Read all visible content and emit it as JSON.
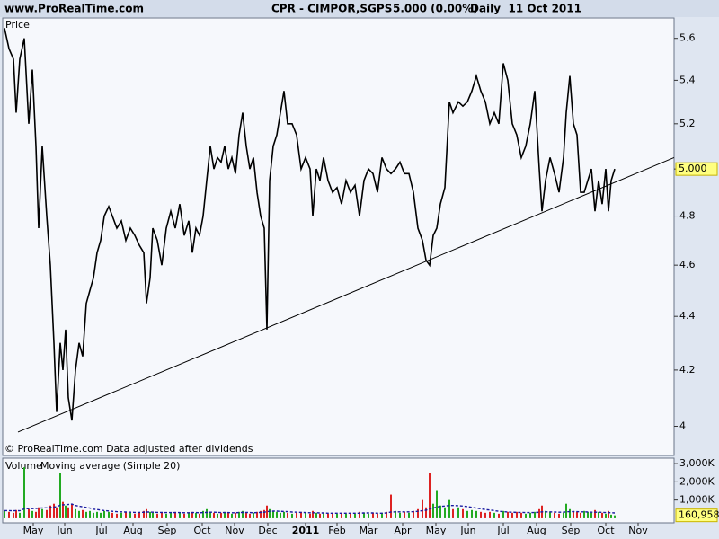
{
  "header": {
    "site": "www.ProRealTime.com",
    "title": "CPR - CIMPOR,SGPS",
    "quote": "5.000 (0.00%)",
    "period": "Daily  11 Oct 2011"
  },
  "chart_data": [
    {
      "type": "line",
      "log_scale": true,
      "footnote": "© ProRealTime.com  Data adjusted after dividends",
      "x": [
        5,
        10,
        15,
        18,
        22,
        27,
        32,
        36,
        40,
        43,
        47,
        52,
        56,
        60,
        63,
        67,
        70,
        73,
        76,
        80,
        84,
        88,
        92,
        96,
        100,
        104,
        108,
        112,
        116,
        121,
        125,
        130,
        135,
        140,
        145,
        150,
        155,
        160,
        163,
        167,
        170,
        175,
        180,
        185,
        190,
        195,
        200,
        205,
        210,
        214,
        218,
        222,
        226,
        230,
        234,
        238,
        242,
        246,
        250,
        254,
        258,
        262,
        266,
        270,
        274,
        278,
        282,
        286,
        290,
        294,
        297,
        300,
        304,
        308,
        312,
        316,
        320,
        325,
        330,
        335,
        340,
        345,
        348,
        352,
        356,
        360,
        365,
        370,
        375,
        380,
        385,
        390,
        395,
        400,
        405,
        410,
        415,
        420,
        425,
        430,
        435,
        440,
        445,
        450,
        455,
        460,
        465,
        470,
        474,
        478,
        482,
        486,
        490,
        495,
        500,
        504,
        510,
        515,
        520,
        525,
        530,
        535,
        540,
        545,
        550,
        555,
        560,
        565,
        570,
        575,
        580,
        585,
        590,
        595,
        600,
        603,
        607,
        612,
        617,
        622,
        627,
        630,
        634,
        638,
        642,
        646,
        650,
        654,
        658,
        662,
        666,
        670,
        674,
        677,
        680,
        684
      ],
      "series": [
        {
          "name": "Price",
          "color": "#000000",
          "values": [
            5.65,
            5.55,
            5.5,
            5.25,
            5.5,
            5.6,
            5.2,
            5.45,
            5.1,
            4.75,
            5.1,
            4.8,
            4.6,
            4.3,
            4.05,
            4.3,
            4.2,
            4.35,
            4.1,
            4.02,
            4.2,
            4.3,
            4.25,
            4.45,
            4.5,
            4.55,
            4.65,
            4.7,
            4.8,
            4.84,
            4.8,
            4.75,
            4.78,
            4.7,
            4.75,
            4.72,
            4.68,
            4.65,
            4.45,
            4.55,
            4.75,
            4.7,
            4.6,
            4.75,
            4.82,
            4.75,
            4.85,
            4.72,
            4.78,
            4.65,
            4.75,
            4.72,
            4.8,
            4.95,
            5.1,
            5.0,
            5.05,
            5.03,
            5.1,
            5.0,
            5.05,
            4.98,
            5.15,
            5.25,
            5.1,
            5.0,
            5.05,
            4.9,
            4.8,
            4.75,
            4.35,
            4.95,
            5.1,
            5.15,
            5.25,
            5.35,
            5.2,
            5.2,
            5.15,
            5.0,
            5.05,
            5.0,
            4.8,
            5.0,
            4.95,
            5.05,
            4.95,
            4.9,
            4.92,
            4.85,
            4.95,
            4.9,
            4.93,
            4.8,
            4.95,
            5.0,
            4.98,
            4.9,
            5.05,
            5.0,
            4.98,
            5.0,
            5.03,
            4.98,
            4.98,
            4.9,
            4.75,
            4.7,
            4.62,
            4.6,
            4.72,
            4.75,
            4.85,
            4.92,
            5.3,
            5.25,
            5.3,
            5.28,
            5.3,
            5.35,
            5.42,
            5.35,
            5.3,
            5.2,
            5.25,
            5.2,
            5.48,
            5.4,
            5.2,
            5.15,
            5.05,
            5.1,
            5.2,
            5.35,
            5.0,
            4.82,
            4.95,
            5.05,
            4.98,
            4.9,
            5.05,
            5.25,
            5.42,
            5.2,
            5.15,
            4.9,
            4.9,
            4.95,
            5.0,
            4.82,
            4.95,
            4.85,
            5.0,
            4.82,
            4.95,
            5.0
          ]
        }
      ],
      "trend_lines": [
        {
          "x": [
            20,
            750
          ],
          "values": [
            3.98,
            5.05
          ]
        },
        {
          "x": [
            210,
            703
          ],
          "values": [
            4.8,
            4.8
          ]
        }
      ],
      "last_value": {
        "value": 5,
        "label": "5.000"
      },
      "xlim": [
        3,
        750
      ],
      "ylim": [
        3.9,
        5.7
      ],
      "yticks": [
        4,
        4.2,
        4.4,
        4.6,
        4.8,
        5,
        5.2,
        5.4,
        5.6
      ]
    },
    {
      "type": "volume",
      "x": [
        5,
        10,
        15,
        18,
        22,
        27,
        32,
        36,
        40,
        43,
        47,
        52,
        56,
        60,
        63,
        67,
        70,
        73,
        76,
        80,
        84,
        88,
        92,
        96,
        100,
        104,
        108,
        112,
        116,
        121,
        125,
        130,
        135,
        140,
        145,
        150,
        155,
        160,
        163,
        167,
        170,
        175,
        180,
        185,
        190,
        195,
        200,
        205,
        210,
        214,
        218,
        222,
        226,
        230,
        234,
        238,
        242,
        246,
        250,
        254,
        258,
        262,
        266,
        270,
        274,
        278,
        282,
        286,
        290,
        294,
        297,
        300,
        304,
        308,
        312,
        316,
        320,
        325,
        330,
        335,
        340,
        345,
        348,
        352,
        356,
        360,
        365,
        370,
        375,
        380,
        385,
        390,
        395,
        400,
        405,
        410,
        415,
        420,
        425,
        430,
        435,
        440,
        445,
        450,
        455,
        460,
        465,
        470,
        474,
        478,
        482,
        486,
        490,
        495,
        500,
        504,
        510,
        515,
        520,
        525,
        530,
        535,
        540,
        545,
        550,
        555,
        560,
        565,
        570,
        575,
        580,
        585,
        590,
        595,
        600,
        603,
        607,
        612,
        617,
        622,
        627,
        630,
        634,
        638,
        642,
        646,
        650,
        654,
        658,
        662,
        666,
        670,
        674,
        677,
        680,
        684
      ],
      "series": [
        {
          "name": "Volume",
          "color": "#22aa22",
          "down_color": "#dd2222",
          "values": [
            400000,
            350000,
            300000,
            450000,
            300000,
            2800000,
            500000,
            400000,
            350000,
            600000,
            500000,
            450000,
            700000,
            800000,
            600000,
            2500000,
            900000,
            700000,
            600000,
            800000,
            500000,
            400000,
            450000,
            350000,
            400000,
            300000,
            350000,
            300000,
            400000,
            350000,
            300000,
            250000,
            300000,
            350000,
            300000,
            250000,
            300000,
            400000,
            500000,
            350000,
            300000,
            250000,
            300000,
            250000,
            300000,
            350000,
            300000,
            250000,
            300000,
            350000,
            300000,
            250000,
            400000,
            500000,
            350000,
            300000,
            250000,
            300000,
            350000,
            300000,
            250000,
            300000,
            350000,
            400000,
            300000,
            250000,
            300000,
            350000,
            400000,
            450000,
            700000,
            500000,
            400000,
            350000,
            300000,
            350000,
            300000,
            250000,
            300000,
            350000,
            300000,
            250000,
            400000,
            300000,
            250000,
            300000,
            250000,
            300000,
            250000,
            300000,
            250000,
            300000,
            250000,
            350000,
            300000,
            250000,
            300000,
            250000,
            300000,
            350000,
            1300000,
            400000,
            300000,
            350000,
            300000,
            400000,
            500000,
            1000000,
            600000,
            2500000,
            800000,
            1500000,
            700000,
            600000,
            1000000,
            500000,
            600000,
            500000,
            400000,
            450000,
            400000,
            350000,
            300000,
            350000,
            300000,
            250000,
            400000,
            350000,
            300000,
            350000,
            300000,
            250000,
            300000,
            350000,
            500000,
            700000,
            400000,
            350000,
            300000,
            250000,
            300000,
            800000,
            500000,
            400000,
            350000,
            300000,
            400000,
            350000,
            300000,
            450000,
            350000,
            300000,
            250000,
            400000,
            200000,
            160958
          ]
        },
        {
          "name": "Moving average (Simple 20)",
          "color": "#1a1aa0",
          "dashed": true,
          "values": [
            420000,
            420000,
            410000,
            420000,
            410000,
            520000,
            530000,
            530000,
            540000,
            560000,
            570000,
            580000,
            600000,
            620000,
            630000,
            720000,
            740000,
            750000,
            760000,
            780000,
            700000,
            660000,
            630000,
            600000,
            560000,
            500000,
            480000,
            450000,
            420000,
            400000,
            380000,
            360000,
            350000,
            340000,
            330000,
            320000,
            320000,
            330000,
            340000,
            340000,
            330000,
            320000,
            320000,
            310000,
            310000,
            310000,
            310000,
            300000,
            300000,
            310000,
            310000,
            300000,
            310000,
            320000,
            330000,
            330000,
            320000,
            310000,
            310000,
            310000,
            300000,
            300000,
            310000,
            320000,
            320000,
            310000,
            300000,
            310000,
            320000,
            330000,
            360000,
            380000,
            390000,
            390000,
            380000,
            370000,
            360000,
            340000,
            330000,
            320000,
            310000,
            300000,
            300000,
            300000,
            290000,
            290000,
            280000,
            280000,
            280000,
            280000,
            280000,
            280000,
            280000,
            280000,
            290000,
            290000,
            290000,
            280000,
            280000,
            290000,
            340000,
            350000,
            350000,
            350000,
            350000,
            360000,
            380000,
            420000,
            440000,
            520000,
            560000,
            620000,
            650000,
            670000,
            700000,
            700000,
            690000,
            670000,
            640000,
            600000,
            560000,
            520000,
            480000,
            450000,
            420000,
            380000,
            360000,
            340000,
            330000,
            320000,
            320000,
            310000,
            310000,
            310000,
            330000,
            350000,
            350000,
            350000,
            340000,
            330000,
            330000,
            350000,
            360000,
            360000,
            360000,
            350000,
            350000,
            340000,
            330000,
            330000,
            330000,
            320000,
            310000,
            310000,
            300000,
            290000
          ]
        }
      ],
      "last_value": {
        "value": 160958,
        "label": "160,958"
      },
      "xlim": [
        3,
        750
      ],
      "ylim": [
        -250000,
        3300000
      ],
      "yticks": [
        {
          "value": 1000000,
          "label": "1,000K"
        },
        {
          "value": 2000000,
          "label": "2,000K"
        },
        {
          "value": 3000000,
          "label": "3,000K"
        }
      ],
      "year_tick_bold": true,
      "xticks": [
        {
          "value": 37,
          "label": "May"
        },
        {
          "value": 72,
          "label": "Jun"
        },
        {
          "value": 113,
          "label": "Jul"
        },
        {
          "value": 148,
          "label": "Aug"
        },
        {
          "value": 186,
          "label": "Sep"
        },
        {
          "value": 225,
          "label": "Oct"
        },
        {
          "value": 261,
          "label": "Nov"
        },
        {
          "value": 298,
          "label": "Dec"
        },
        {
          "value": 340,
          "label": "2011"
        },
        {
          "value": 375,
          "label": "Feb"
        },
        {
          "value": 410,
          "label": "Mar"
        },
        {
          "value": 448,
          "label": "Apr"
        },
        {
          "value": 485,
          "label": "May"
        },
        {
          "value": 521,
          "label": "Jun"
        },
        {
          "value": 560,
          "label": "Jul"
        },
        {
          "value": 597,
          "label": "Aug"
        },
        {
          "value": 635,
          "label": "Sep"
        },
        {
          "value": 674,
          "label": "Oct"
        },
        {
          "value": 710,
          "label": "Nov"
        }
      ]
    }
  ]
}
